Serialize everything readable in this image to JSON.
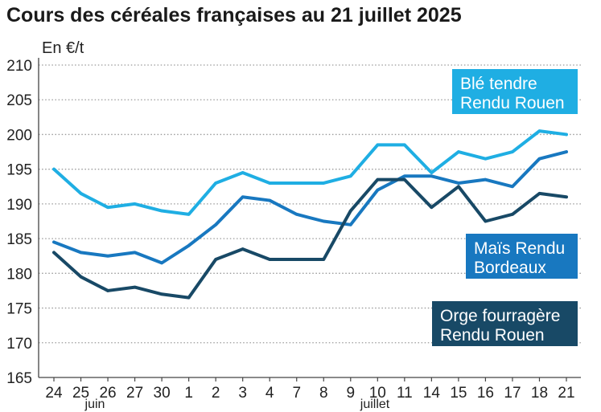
{
  "chart_data": {
    "type": "line",
    "title": "Cours des céréales françaises au 21 juillet 2025",
    "ylabel": "En €/t",
    "categories": [
      "24",
      "25",
      "26",
      "27",
      "30",
      "1",
      "2",
      "3",
      "4",
      "7",
      "8",
      "9",
      "10",
      "11",
      "14",
      "15",
      "16",
      "17",
      "18",
      "21"
    ],
    "months": [
      "juin",
      "juillet"
    ],
    "ylim": [
      165,
      210
    ],
    "yticks": [
      165,
      170,
      175,
      180,
      185,
      190,
      195,
      200,
      205,
      210
    ],
    "grid": true,
    "legend": "right",
    "series": [
      {
        "label": [
          "Blé tendre",
          "Rendu Rouen"
        ],
        "color": "#1faee3",
        "values": [
          195,
          191.5,
          189.5,
          190,
          189,
          188.5,
          193,
          194.5,
          193,
          193,
          193,
          194,
          198.5,
          198.5,
          194.5,
          197.5,
          196.5,
          197.5,
          200.5,
          200
        ]
      },
      {
        "label": [
          "Maïs Rendu",
          "Bordeaux"
        ],
        "color": "#1878c0",
        "values": [
          184.5,
          183,
          182.5,
          183,
          181.5,
          184,
          187,
          191,
          190.5,
          188.5,
          187.5,
          187,
          192,
          194,
          194,
          193,
          193.5,
          192.5,
          196.5,
          197.5
        ]
      },
      {
        "label": [
          "Orge fourragère",
          "Rendu Rouen"
        ],
        "color": "#184966",
        "values": [
          183,
          179.5,
          177.5,
          178,
          177,
          176.5,
          182,
          183.5,
          182,
          182,
          182,
          189,
          193.5,
          193.5,
          189.5,
          192.5,
          187.5,
          188.5,
          191.5,
          191
        ]
      }
    ]
  },
  "colors": {
    "background": "#ffffff",
    "title": "#1a1a1a",
    "grid": "#9a9a9a",
    "axis": "#444444",
    "label_text": "#ffffff"
  }
}
